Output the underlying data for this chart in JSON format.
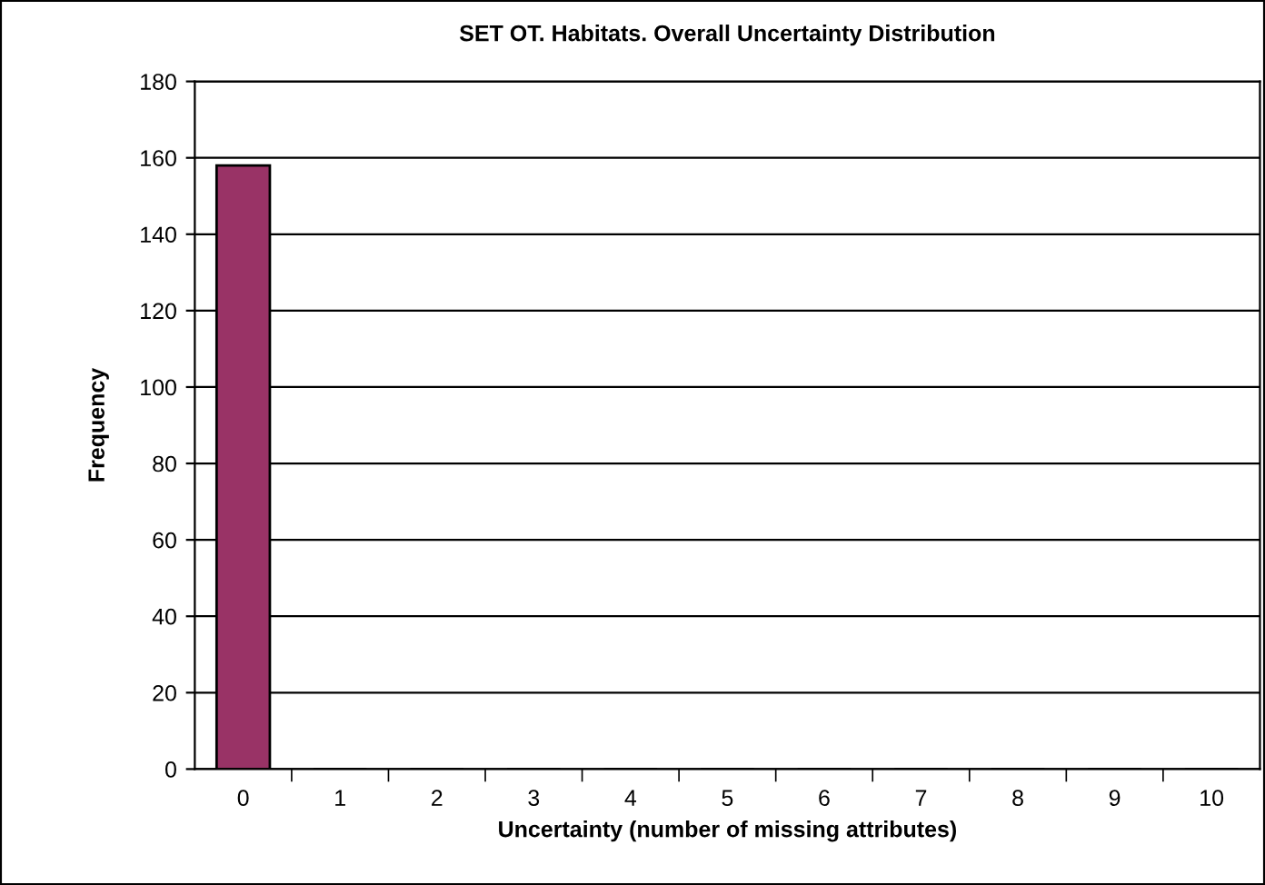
{
  "chart_data": {
    "type": "bar",
    "title": "SET OT. Habitats. Overall Uncertainty Distribution",
    "xlabel": "Uncertainty (number of missing attributes)",
    "ylabel": "Frequency",
    "categories": [
      "0",
      "1",
      "2",
      "3",
      "4",
      "5",
      "6",
      "7",
      "8",
      "9",
      "10"
    ],
    "values": [
      158,
      0,
      0,
      0,
      0,
      0,
      0,
      0,
      0,
      0,
      0
    ],
    "color": "#993366",
    "ylim": [
      0,
      180
    ],
    "yticks": [
      0,
      20,
      40,
      60,
      80,
      100,
      120,
      140,
      160,
      180
    ],
    "grid": "y",
    "legend": false
  }
}
